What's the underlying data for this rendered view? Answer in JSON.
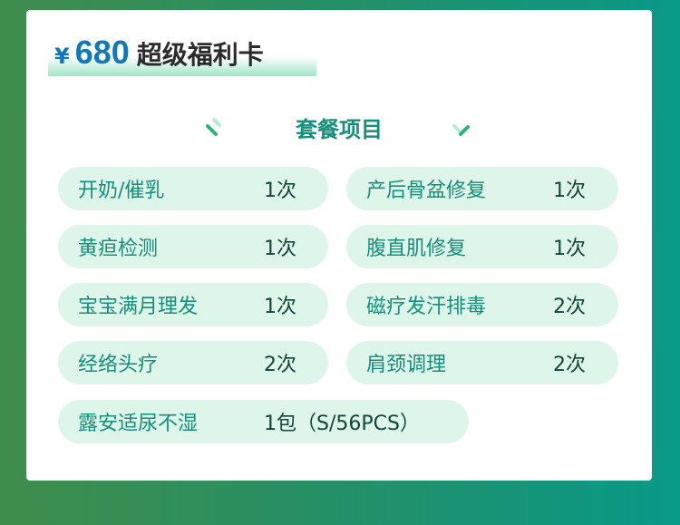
{
  "header": {
    "currency": "¥",
    "price": "680",
    "title": "超级福利卡"
  },
  "section_title": "套餐项目",
  "items": [
    {
      "label": "开奶/催乳",
      "count": "1次"
    },
    {
      "label": "产后骨盆修复",
      "count": "1次"
    },
    {
      "label": "黄疸检测",
      "count": "1次"
    },
    {
      "label": "腹直肌修复",
      "count": "1次"
    },
    {
      "label": "宝宝满月理发",
      "count": "1次"
    },
    {
      "label": "磁疗发汗排毒",
      "count": "2次"
    },
    {
      "label": "经络头疗",
      "count": "2次"
    },
    {
      "label": "肩颈调理",
      "count": "2次"
    },
    {
      "label": "露安适尿不湿",
      "count": "1包（S/56PCS）"
    }
  ],
  "colors": {
    "accent": "#13907a",
    "price": "#0f78b8",
    "pill_bg": "#def5ea"
  }
}
